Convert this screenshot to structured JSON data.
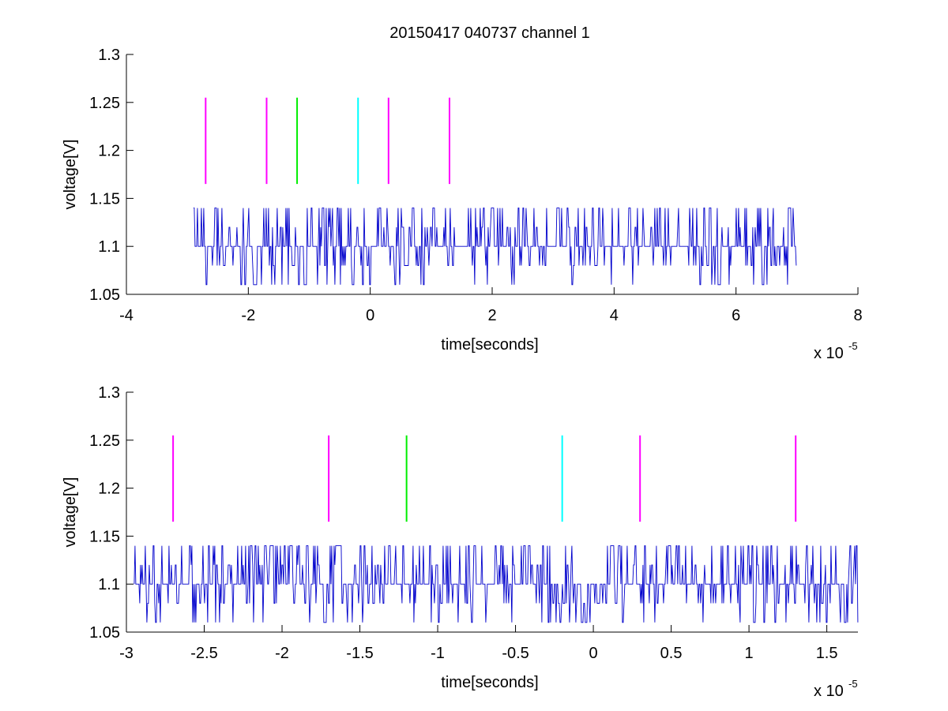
{
  "figure": {
    "title": "20150417 040737 channel 1"
  },
  "chart_data": [
    {
      "type": "line",
      "title": "20150417 040737 channel 1",
      "xlabel": "time[seconds]",
      "ylabel": "voltage[V]",
      "x_multiplier": "x 10",
      "x_exponent": "-5",
      "xlim": [
        -4,
        8
      ],
      "ylim": [
        1.05,
        1.3
      ],
      "xticks": [
        -4,
        -2,
        0,
        2,
        4,
        6,
        8
      ],
      "xtick_labels": [
        "-4",
        "-2",
        "0",
        "2",
        "4",
        "6",
        "8"
      ],
      "yticks": [
        1.05,
        1.1,
        1.15,
        1.2,
        1.25,
        1.3
      ],
      "ytick_labels": [
        "1.05",
        "1.1",
        "1.15",
        "1.2",
        "1.25",
        "1.3"
      ],
      "grid": false,
      "signal": {
        "color": "#0000cc",
        "x_range": [
          -2.9,
          7.0
        ],
        "baseline": 1.1,
        "levels": [
          1.06,
          1.08,
          1.1,
          1.12,
          1.14
        ]
      },
      "markers": [
        {
          "x": -2.7,
          "color": "#ff00ff",
          "y0": 1.165,
          "y1": 1.255
        },
        {
          "x": -1.7,
          "color": "#ff00ff",
          "y0": 1.165,
          "y1": 1.255
        },
        {
          "x": -1.2,
          "color": "#00ee00",
          "y0": 1.165,
          "y1": 1.255
        },
        {
          "x": -0.2,
          "color": "#00ffff",
          "y0": 1.165,
          "y1": 1.255
        },
        {
          "x": 0.3,
          "color": "#ff00ff",
          "y0": 1.165,
          "y1": 1.255
        },
        {
          "x": 1.3,
          "color": "#ff00ff",
          "y0": 1.165,
          "y1": 1.255
        }
      ]
    },
    {
      "type": "line",
      "title": "",
      "xlabel": "time[seconds]",
      "ylabel": "voltage[V]",
      "x_multiplier": "x 10",
      "x_exponent": "-5",
      "xlim": [
        -3.0,
        1.7
      ],
      "ylim": [
        1.05,
        1.3
      ],
      "xticks": [
        -3,
        -2.5,
        -2,
        -1.5,
        -1,
        -0.5,
        0,
        0.5,
        1,
        1.5
      ],
      "xtick_labels": [
        "-3",
        "-2.5",
        "-2",
        "-1.5",
        "-1",
        "-0.5",
        "0",
        "0.5",
        "1",
        "1.5"
      ],
      "yticks": [
        1.05,
        1.1,
        1.15,
        1.2,
        1.25,
        1.3
      ],
      "ytick_labels": [
        "1.05",
        "1.1",
        "1.15",
        "1.2",
        "1.25",
        "1.3"
      ],
      "grid": false,
      "signal": {
        "color": "#0000cc",
        "x_range": [
          -2.95,
          1.7
        ],
        "baseline": 1.1,
        "levels": [
          1.06,
          1.08,
          1.1,
          1.12,
          1.14
        ]
      },
      "markers": [
        {
          "x": -2.7,
          "color": "#ff00ff",
          "y0": 1.165,
          "y1": 1.255
        },
        {
          "x": -1.7,
          "color": "#ff00ff",
          "y0": 1.165,
          "y1": 1.255
        },
        {
          "x": -1.2,
          "color": "#00ee00",
          "y0": 1.165,
          "y1": 1.255
        },
        {
          "x": -0.2,
          "color": "#00ffff",
          "y0": 1.165,
          "y1": 1.255
        },
        {
          "x": 0.3,
          "color": "#ff00ff",
          "y0": 1.165,
          "y1": 1.255
        },
        {
          "x": 1.3,
          "color": "#ff00ff",
          "y0": 1.165,
          "y1": 1.255
        }
      ]
    }
  ]
}
